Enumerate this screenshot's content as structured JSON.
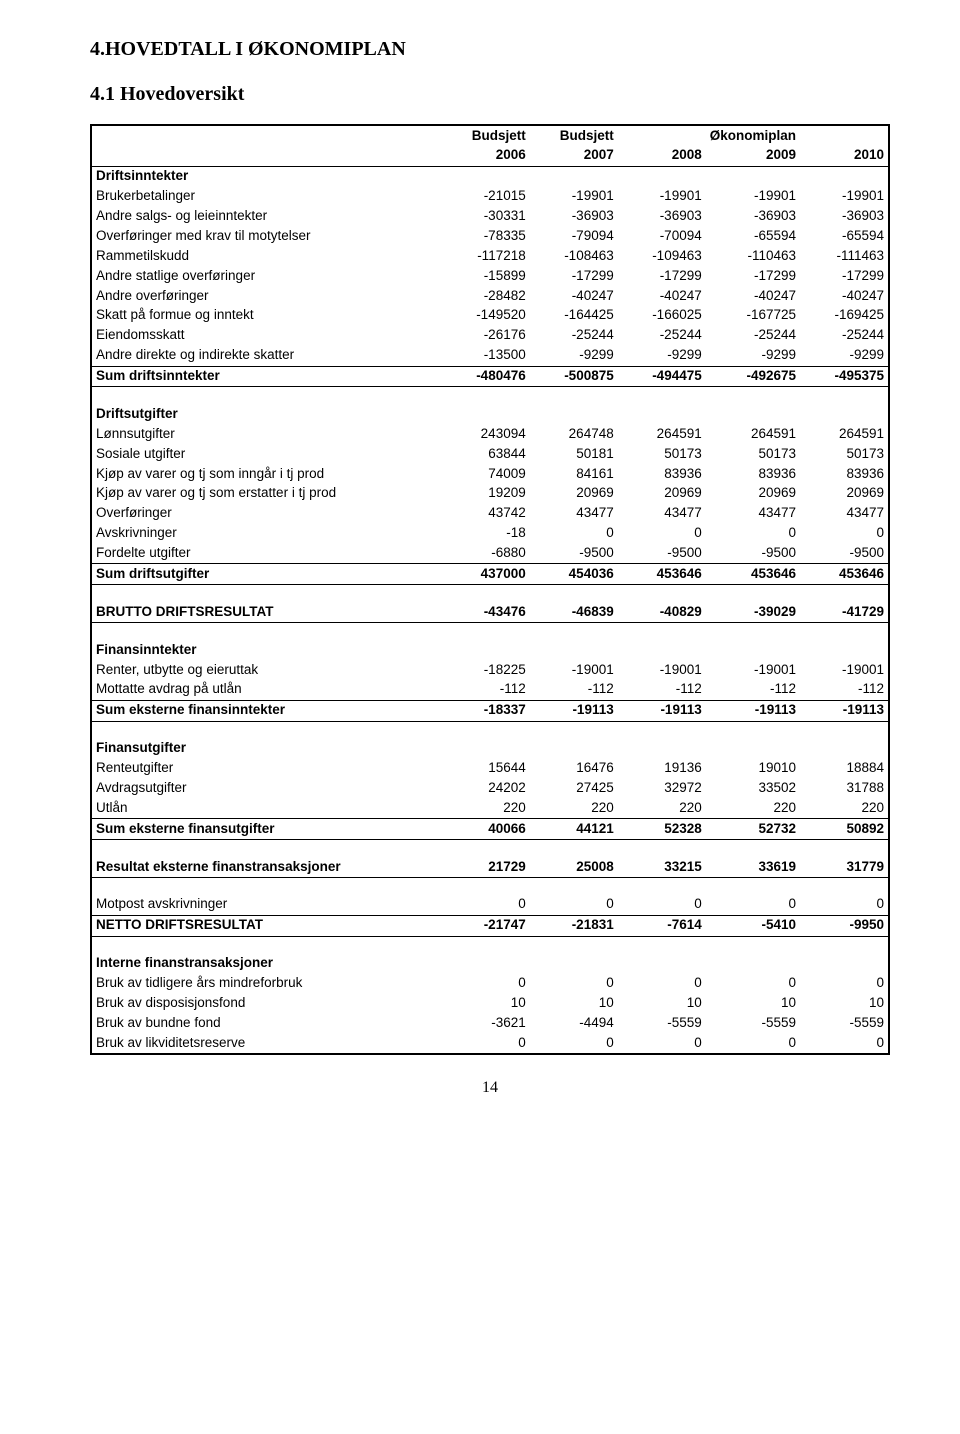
{
  "page": {
    "title": "4.HOVEDTALL I ØKONOMIPLAN",
    "subsection": "4.1 Hovedoversikt",
    "pageNumber": "14"
  },
  "header": {
    "budsjett": "Budsjett",
    "okonomiplan": "Økonomiplan",
    "y2006": "2006",
    "y2007": "2007",
    "y2008": "2008",
    "y2009": "2009",
    "y2010": "2010"
  },
  "sections": {
    "driftsinntekter": "Driftsinntekter",
    "driftsutgifter": "Driftsutgifter",
    "finansinntekter": "Finansinntekter",
    "finansutgifter": "Finansutgifter",
    "interne": "Interne finanstransaksjoner"
  },
  "rows": {
    "brukerbetalinger": {
      "label": "Brukerbetalinger",
      "v": [
        "-21015",
        "-19901",
        "-19901",
        "-19901",
        "-19901"
      ]
    },
    "andre_salgs": {
      "label": "Andre salgs- og leieinntekter",
      "v": [
        "-30331",
        "-36903",
        "-36903",
        "-36903",
        "-36903"
      ]
    },
    "overf_krav": {
      "label": "Overføringer med krav til motytelser",
      "v": [
        "-78335",
        "-79094",
        "-70094",
        "-65594",
        "-65594"
      ]
    },
    "rammetilskudd": {
      "label": "Rammetilskudd",
      "v": [
        "-117218",
        "-108463",
        "-109463",
        "-110463",
        "-111463"
      ]
    },
    "andre_statlige": {
      "label": "Andre statlige overføringer",
      "v": [
        "-15899",
        "-17299",
        "-17299",
        "-17299",
        "-17299"
      ]
    },
    "andre_overf": {
      "label": "Andre overføringer",
      "v": [
        "-28482",
        "-40247",
        "-40247",
        "-40247",
        "-40247"
      ]
    },
    "skatt_formue": {
      "label": "Skatt på formue og inntekt",
      "v": [
        "-149520",
        "-164425",
        "-166025",
        "-167725",
        "-169425"
      ]
    },
    "eiendomsskatt": {
      "label": "Eiendomsskatt",
      "v": [
        "-26176",
        "-25244",
        "-25244",
        "-25244",
        "-25244"
      ]
    },
    "andre_direkte": {
      "label": "Andre direkte og indirekte skatter",
      "v": [
        "-13500",
        "-9299",
        "-9299",
        "-9299",
        "-9299"
      ]
    },
    "sum_driftsinn": {
      "label": "Sum driftsinntekter",
      "v": [
        "-480476",
        "-500875",
        "-494475",
        "-492675",
        "-495375"
      ]
    },
    "lonnsutgifter": {
      "label": "Lønnsutgifter",
      "v": [
        "243094",
        "264748",
        "264591",
        "264591",
        "264591"
      ]
    },
    "sosiale": {
      "label": "Sosiale utgifter",
      "v": [
        "63844",
        "50181",
        "50173",
        "50173",
        "50173"
      ]
    },
    "kjop_inngar": {
      "label": "Kjøp av varer og tj som inngår i tj prod",
      "v": [
        "74009",
        "84161",
        "83936",
        "83936",
        "83936"
      ]
    },
    "kjop_erstatter": {
      "label": "Kjøp av varer og tj som erstatter i tj prod",
      "v": [
        "19209",
        "20969",
        "20969",
        "20969",
        "20969"
      ]
    },
    "overforinger": {
      "label": "Overføringer",
      "v": [
        "43742",
        "43477",
        "43477",
        "43477",
        "43477"
      ]
    },
    "avskrivninger": {
      "label": "Avskrivninger",
      "v": [
        "-18",
        "0",
        "0",
        "0",
        "0"
      ]
    },
    "fordelte": {
      "label": "Fordelte utgifter",
      "v": [
        "-6880",
        "-9500",
        "-9500",
        "-9500",
        "-9500"
      ]
    },
    "sum_driftsut": {
      "label": "Sum driftsutgifter",
      "v": [
        "437000",
        "454036",
        "453646",
        "453646",
        "453646"
      ]
    },
    "brutto": {
      "label": "BRUTTO DRIFTSRESULTAT",
      "v": [
        "-43476",
        "-46839",
        "-40829",
        "-39029",
        "-41729"
      ]
    },
    "renter_utbytte": {
      "label": "Renter, utbytte og eieruttak",
      "v": [
        "-18225",
        "-19001",
        "-19001",
        "-19001",
        "-19001"
      ]
    },
    "mottatte_avdrag": {
      "label": "Mottatte avdrag på utlån",
      "v": [
        "-112",
        "-112",
        "-112",
        "-112",
        "-112"
      ]
    },
    "sum_eksterne_fi": {
      "label": "Sum eksterne finansinntekter",
      "v": [
        "-18337",
        "-19113",
        "-19113",
        "-19113",
        "-19113"
      ]
    },
    "renteutgifter": {
      "label": "Renteutgifter",
      "v": [
        "15644",
        "16476",
        "19136",
        "19010",
        "18884"
      ]
    },
    "avdragsutgifter": {
      "label": "Avdragsutgifter",
      "v": [
        "24202",
        "27425",
        "32972",
        "33502",
        "31788"
      ]
    },
    "utlaan": {
      "label": "Utlån",
      "v": [
        "220",
        "220",
        "220",
        "220",
        "220"
      ]
    },
    "sum_eksterne_fu": {
      "label": "Sum eksterne finansutgifter",
      "v": [
        "40066",
        "44121",
        "52328",
        "52732",
        "50892"
      ]
    },
    "resultat_eksterne": {
      "label": "Resultat eksterne finanstransaksjoner",
      "v": [
        "21729",
        "25008",
        "33215",
        "33619",
        "31779"
      ]
    },
    "motpost": {
      "label": "Motpost avskrivninger",
      "v": [
        "0",
        "0",
        "0",
        "0",
        "0"
      ]
    },
    "netto": {
      "label": "NETTO DRIFTSRESULTAT",
      "v": [
        "-21747",
        "-21831",
        "-7614",
        "-5410",
        "-9950"
      ]
    },
    "bruk_tidligere": {
      "label": "Bruk av tidligere års mindreforbruk",
      "v": [
        "0",
        "0",
        "0",
        "0",
        "0"
      ]
    },
    "bruk_disposisjon": {
      "label": "Bruk av disposisjonsfond",
      "v": [
        "10",
        "10",
        "10",
        "10",
        "10"
      ]
    },
    "bruk_bundne": {
      "label": "Bruk av bundne fond",
      "v": [
        "-3621",
        "-4494",
        "-5559",
        "-5559",
        "-5559"
      ]
    },
    "bruk_likviditet": {
      "label": "Bruk av likviditetsreserve",
      "v": [
        "0",
        "0",
        "0",
        "0",
        "0"
      ]
    }
  }
}
